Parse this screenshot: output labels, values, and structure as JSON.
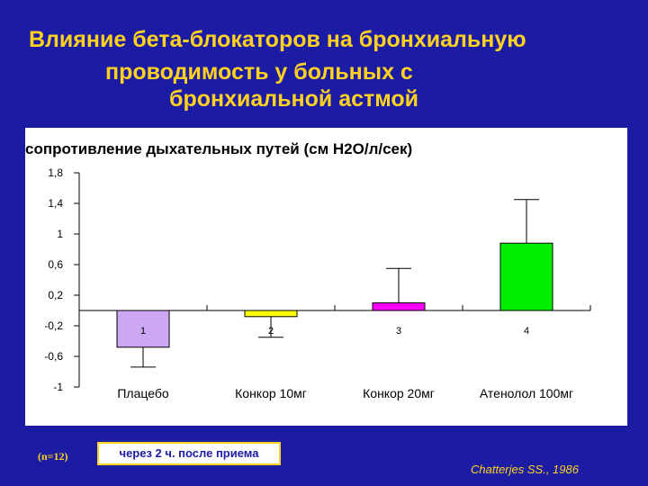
{
  "slide": {
    "title_lines": [
      "Влияние бета-блокаторов на бронхиальную",
      "проводимость у больных с",
      "бронхиальной астмой"
    ],
    "timing_note": "через 2 ч. после приема",
    "sample_size": "(n=12)",
    "citation": "Chatterjes SS., 1986"
  },
  "chart_data": {
    "type": "bar",
    "ylabel": "сопротивление дыхательных путей (см Н2О/л/сек)",
    "categories": [
      "Плацебо",
      "Конкор 10мг",
      "Конкор 20мг",
      "Атенолол 100мг"
    ],
    "bar_labels": [
      "1",
      "2",
      "3",
      "4"
    ],
    "values": [
      -0.48,
      -0.08,
      0.1,
      0.88
    ],
    "error_plus": [
      0,
      0,
      0.45,
      0.57
    ],
    "error_minus": [
      0.26,
      0.27,
      0,
      0
    ],
    "bar_colors": [
      "#cba7f4",
      "#ffff00",
      "#ff00ff",
      "#00ee00"
    ],
    "yticks": [
      "1,8",
      "1,4",
      "1",
      "0,6",
      "0,2",
      "-0,2",
      "-0,6",
      "-1"
    ],
    "ytick_values": [
      1.8,
      1.4,
      1,
      0.6,
      0.2,
      -0.2,
      -0.6,
      -1
    ],
    "ylim": [
      -1,
      1.8
    ],
    "grid": false
  }
}
